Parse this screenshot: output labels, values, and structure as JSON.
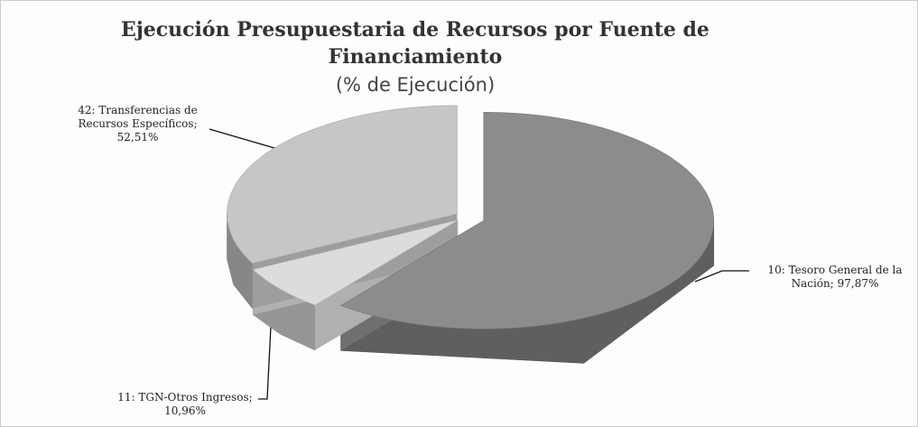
{
  "chart_data": {
    "type": "pie3d",
    "title": "Ejecución Presupuestaria de Recursos por Fuente de Financiamiento",
    "subtitle": "(% de Ejecución)",
    "categories": [
      "10: Tesoro General de la Nación;",
      "11: TGN-Otros Ingresos;",
      "42: Transferencias de Recursos Específicos;"
    ],
    "values": [
      97.87,
      10.96,
      52.51
    ],
    "value_labels": [
      "97,87%",
      "10,96%",
      "52,51%"
    ],
    "colors": [
      "#8c8c8c",
      "#dcdcdc",
      "#c6c6c6"
    ]
  }
}
